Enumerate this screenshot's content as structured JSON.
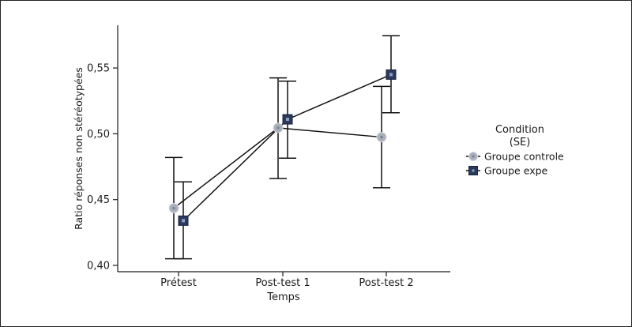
{
  "chart_data": {
    "type": "line",
    "x_categories": [
      "Prétest",
      "Post-test 1",
      "Post-test 2"
    ],
    "xlabel": "Temps",
    "ylabel": "Ratio réponses non stéréotypées",
    "ylim": [
      0.4,
      0.575
    ],
    "y_ticks": [
      0.4,
      0.45,
      0.5,
      0.55
    ],
    "y_tick_labels": [
      "0,40",
      "0,45",
      "0,50",
      "0,55"
    ],
    "legend": {
      "title_line1": "Condition",
      "title_line2": "(SE)",
      "position": "right"
    },
    "series": [
      {
        "name": "Groupe controle",
        "marker": "circle",
        "color": "#a9b0bc",
        "values": [
          0.4435,
          0.5045,
          0.4975
        ],
        "error_low": [
          0.405,
          0.466,
          0.459
        ],
        "error_high": [
          0.482,
          0.5425,
          0.536
        ]
      },
      {
        "name": "Groupe expe",
        "marker": "square",
        "color": "#2b3a5c",
        "values": [
          0.434,
          0.511,
          0.545
        ],
        "error_low": [
          0.405,
          0.4815,
          0.516
        ],
        "error_high": [
          0.4635,
          0.54,
          0.5745
        ]
      }
    ]
  }
}
